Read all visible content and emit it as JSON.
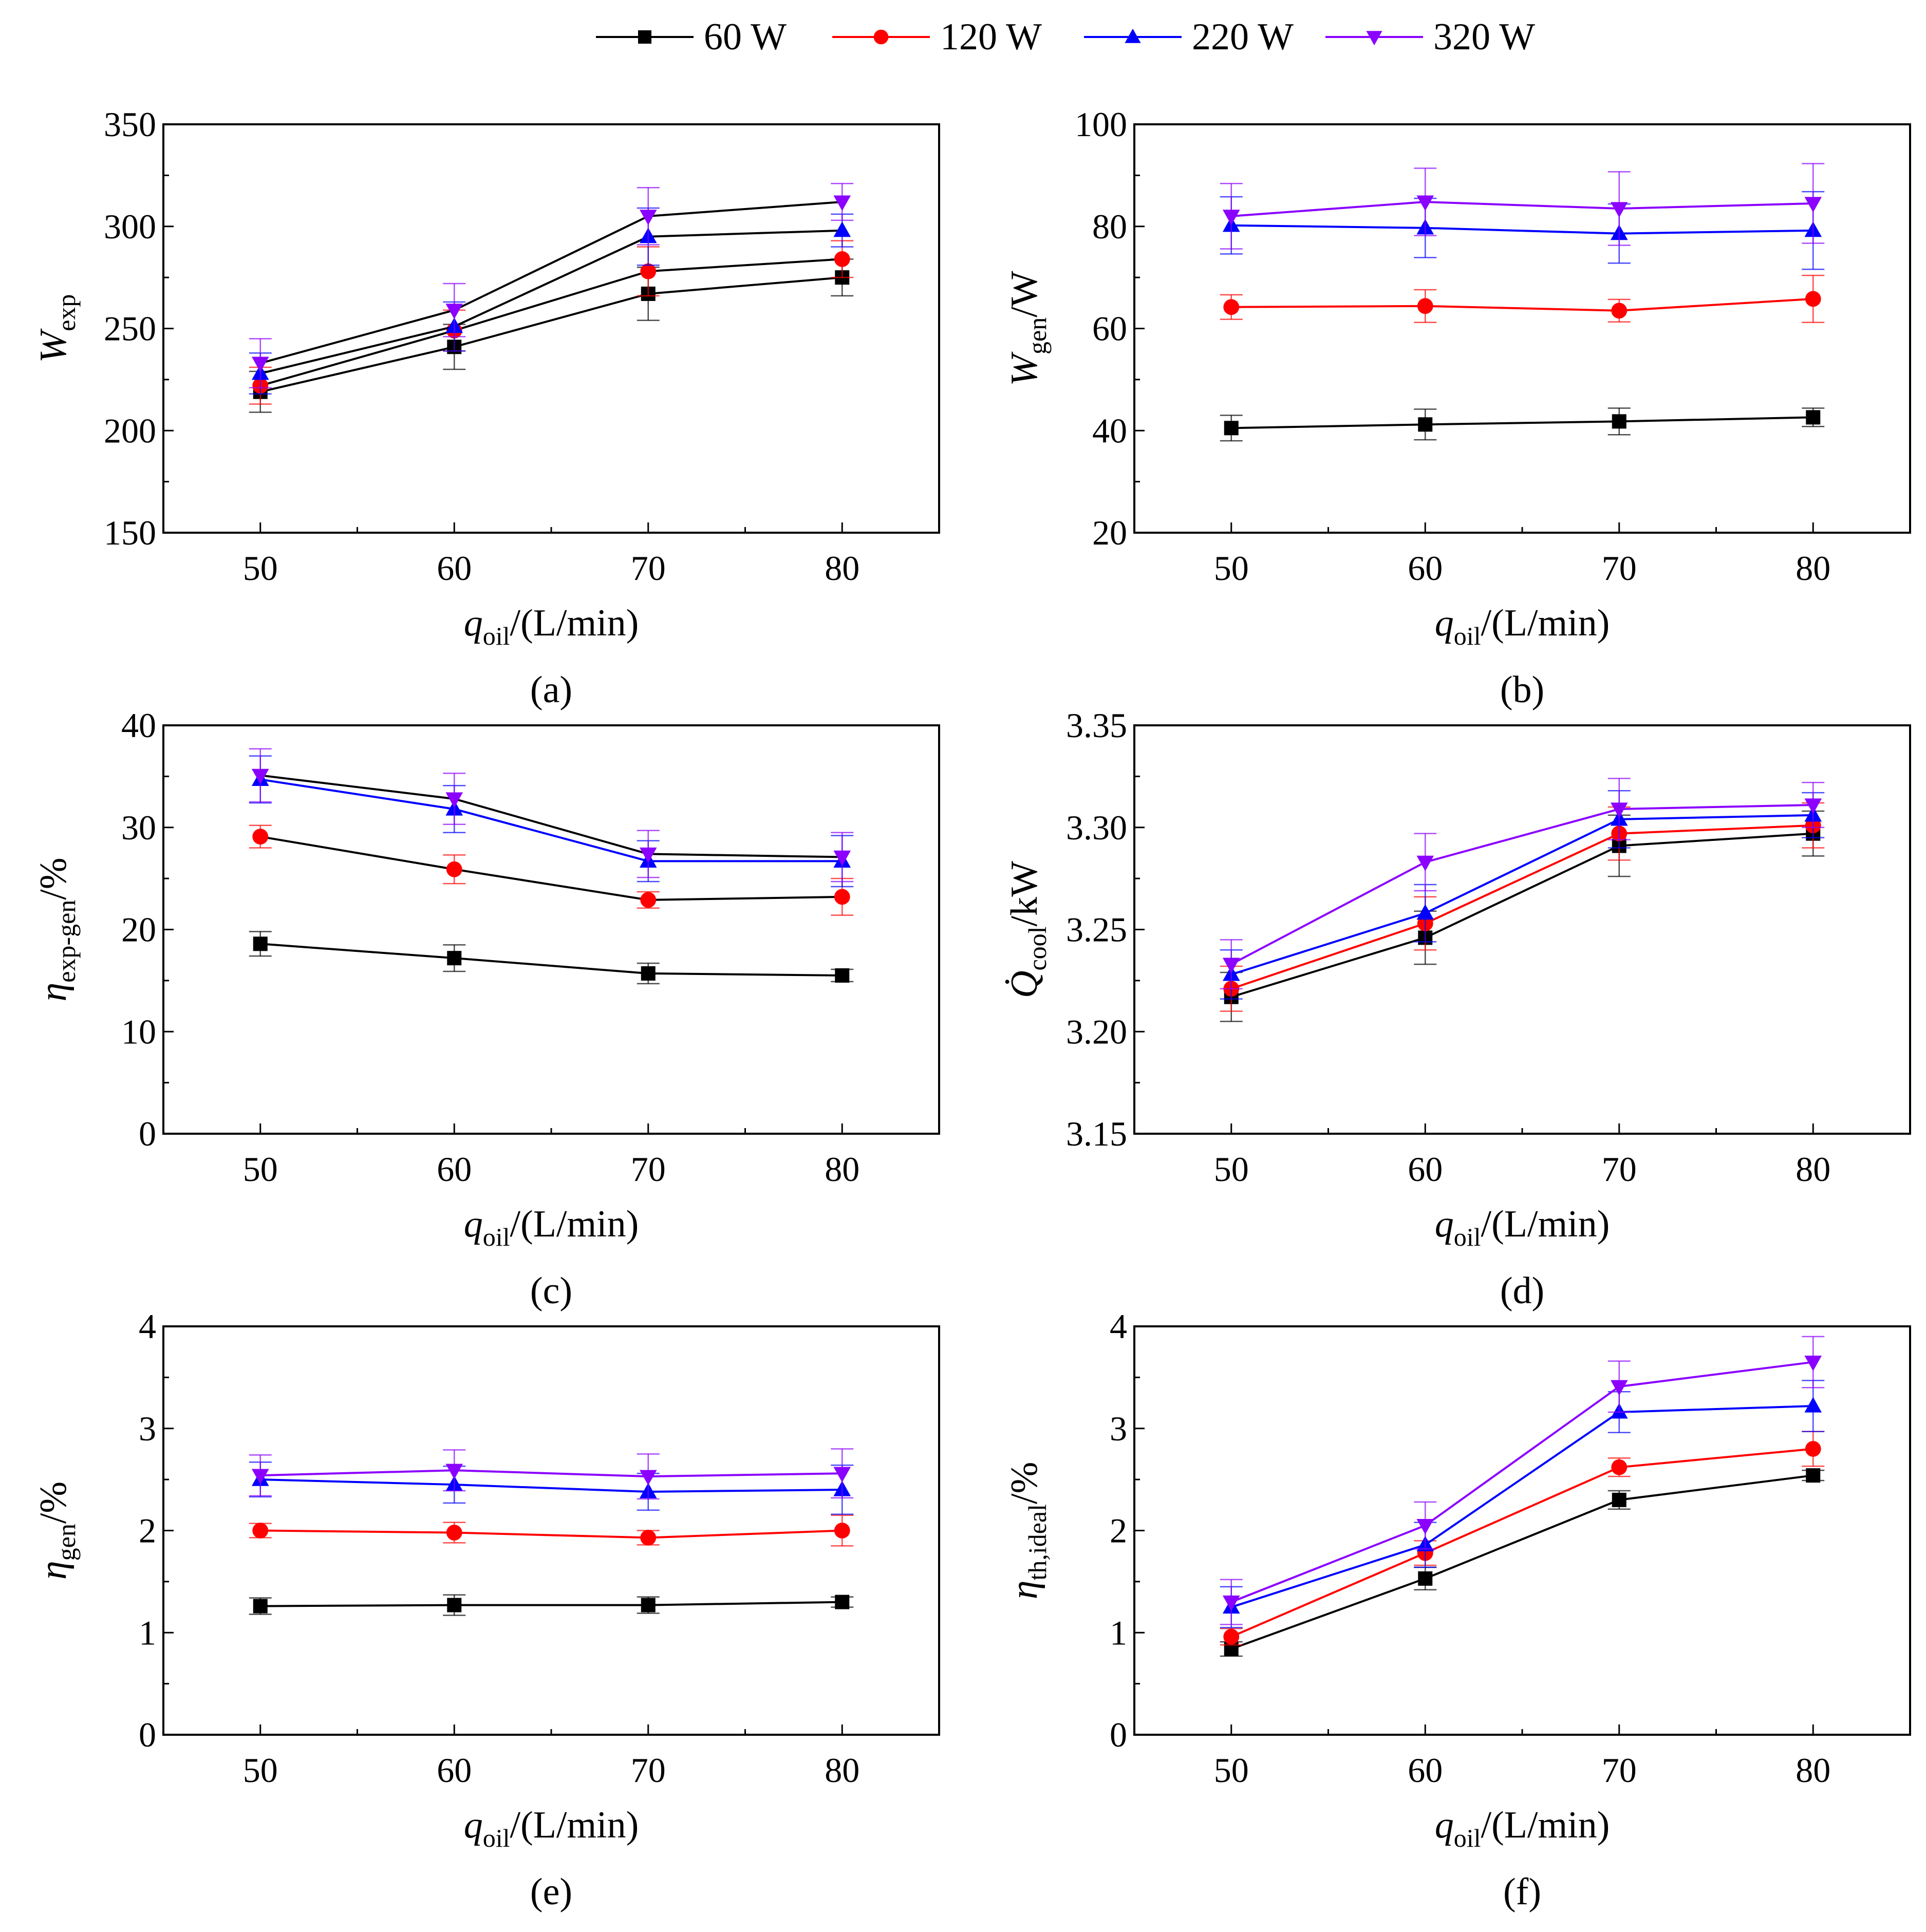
{
  "legend": [
    {
      "name": "60 W",
      "color": "#000000",
      "marker": "square"
    },
    {
      "name": "120 W",
      "color": "#ff0000",
      "marker": "circle"
    },
    {
      "name": "220 W",
      "color": "#0000ff",
      "marker": "triangle-up"
    },
    {
      "name": "320 W",
      "color": "#8b00ff",
      "marker": "triangle-down"
    }
  ],
  "chart_data": [
    {
      "id": "a",
      "panel_label": "(a)",
      "type": "line",
      "title": "",
      "xlabel": {
        "main": "q",
        "sub": "oil",
        "tail": "/(L/min)"
      },
      "ylabel": {
        "main": "W",
        "sub": "exp",
        "tail": ""
      },
      "x": [
        50,
        60,
        70,
        80
      ],
      "xlim": [
        45,
        85
      ],
      "ylim": [
        150,
        350
      ],
      "xticks": [
        50,
        60,
        70,
        80
      ],
      "yticks": [
        150,
        200,
        250,
        300,
        350
      ],
      "ytick_labels": [
        "150",
        "200",
        "250",
        "300",
        "350"
      ],
      "series": [
        {
          "name": "60 W",
          "values": [
            219,
            241,
            267,
            275
          ],
          "errors": [
            10,
            11,
            13,
            9
          ]
        },
        {
          "name": "120 W",
          "values": [
            222,
            249,
            278,
            284
          ],
          "errors": [
            9,
            10,
            12,
            9
          ]
        },
        {
          "name": "220 W",
          "values": [
            228,
            251,
            295,
            298
          ],
          "errors": [
            10,
            12,
            14,
            8
          ]
        },
        {
          "name": "320 W",
          "values": [
            233,
            259,
            305,
            312
          ],
          "errors": [
            12,
            13,
            14,
            9
          ]
        }
      ],
      "line_colors": [
        "#000000",
        "#000000",
        "#000000",
        "#000000"
      ]
    },
    {
      "id": "b",
      "panel_label": "(b)",
      "type": "line",
      "title": "",
      "xlabel": {
        "main": "q",
        "sub": "oil",
        "tail": "/(L/min)"
      },
      "ylabel": {
        "main": "W",
        "sub": "gen",
        "tail": "/W"
      },
      "x": [
        50,
        60,
        70,
        80
      ],
      "xlim": [
        45,
        85
      ],
      "ylim": [
        20,
        100
      ],
      "xticks": [
        50,
        60,
        70,
        80
      ],
      "yticks": [
        20,
        40,
        60,
        80,
        100
      ],
      "ytick_labels": [
        "20",
        "40",
        "60",
        "80",
        "100"
      ],
      "series": [
        {
          "name": "60 W",
          "values": [
            40.5,
            41.2,
            41.8,
            42.6
          ],
          "errors": [
            2.5,
            3,
            2.6,
            1.8
          ]
        },
        {
          "name": "120 W",
          "values": [
            64.2,
            64.4,
            63.5,
            65.8
          ],
          "errors": [
            2.4,
            3.2,
            2.2,
            4.6
          ]
        },
        {
          "name": "220 W",
          "values": [
            80.2,
            79.7,
            78.6,
            79.2
          ],
          "errors": [
            5.6,
            5.8,
            5.8,
            7.6
          ]
        },
        {
          "name": "320 W",
          "values": [
            82,
            84.8,
            83.5,
            84.5
          ],
          "errors": [
            6.4,
            6.6,
            7.2,
            7.8
          ]
        }
      ],
      "line_colors": [
        "#000000",
        "#ff0000",
        "#0000ff",
        "#8b00ff"
      ]
    },
    {
      "id": "c",
      "panel_label": "(c)",
      "type": "line",
      "title": "",
      "xlabel": {
        "main": "q",
        "sub": "oil",
        "tail": "/(L/min)"
      },
      "ylabel": {
        "main": "η",
        "sub": "exp-gen",
        "tail": "/%"
      },
      "x": [
        50,
        60,
        70,
        80
      ],
      "xlim": [
        45,
        85
      ],
      "ylim": [
        0,
        40
      ],
      "xticks": [
        50,
        60,
        70,
        80
      ],
      "yticks": [
        0,
        10,
        20,
        30,
        40
      ],
      "ytick_labels": [
        "0",
        "10",
        "20",
        "30",
        "40"
      ],
      "series": [
        {
          "name": "60 W",
          "values": [
            18.6,
            17.2,
            15.7,
            15.5
          ],
          "errors": [
            1.2,
            1.3,
            1,
            0.6
          ]
        },
        {
          "name": "120 W",
          "values": [
            29.1,
            25.9,
            22.9,
            23.2
          ],
          "errors": [
            1.1,
            1.4,
            0.8,
            1.8
          ]
        },
        {
          "name": "220 W",
          "values": [
            34.7,
            31.8,
            26.7,
            26.7
          ],
          "errors": [
            2.3,
            2.3,
            2,
            2.5
          ]
        },
        {
          "name": "320 W",
          "values": [
            35.1,
            32.8,
            27.4,
            27.1
          ],
          "errors": [
            2.6,
            2.5,
            2.3,
            2.4
          ]
        }
      ],
      "line_colors": [
        "#000000",
        "#000000",
        "#0000ff",
        "#000000"
      ]
    },
    {
      "id": "d",
      "panel_label": "(d)",
      "type": "line",
      "title": "",
      "xlabel": {
        "main": "q",
        "sub": "oil",
        "tail": "/(L/min)"
      },
      "ylabel": {
        "main": "Q̇",
        "sub": "cool",
        "tail": "/kW"
      },
      "x": [
        50,
        60,
        70,
        80
      ],
      "xlim": [
        45,
        85
      ],
      "ylim": [
        3.15,
        3.35
      ],
      "xticks": [
        50,
        60,
        70,
        80
      ],
      "yticks": [
        3.15,
        3.2,
        3.25,
        3.3,
        3.35
      ],
      "ytick_labels": [
        "3.15",
        "3.20",
        "3.25",
        "3.30",
        "3.35"
      ],
      "series": [
        {
          "name": "60 W",
          "values": [
            3.217,
            3.246,
            3.291,
            3.297
          ],
          "errors": [
            0.012,
            0.013,
            0.015,
            0.011
          ]
        },
        {
          "name": "120 W",
          "values": [
            3.221,
            3.253,
            3.297,
            3.301
          ],
          "errors": [
            0.011,
            0.013,
            0.013,
            0.011
          ]
        },
        {
          "name": "220 W",
          "values": [
            3.228,
            3.258,
            3.304,
            3.306
          ],
          "errors": [
            0.012,
            0.014,
            0.014,
            0.011
          ]
        },
        {
          "name": "320 W",
          "values": [
            3.233,
            3.283,
            3.309,
            3.311
          ],
          "errors": [
            0.012,
            0.014,
            0.015,
            0.011
          ]
        }
      ],
      "line_colors": [
        "#000000",
        "#ff0000",
        "#0000ff",
        "#8b00ff"
      ]
    },
    {
      "id": "e",
      "panel_label": "(e)",
      "type": "line",
      "title": "",
      "xlabel": {
        "main": "q",
        "sub": "oil",
        "tail": "/(L/min)"
      },
      "ylabel": {
        "main": "η",
        "sub": "gen",
        "tail": "/%"
      },
      "x": [
        50,
        60,
        70,
        80
      ],
      "xlim": [
        45,
        85
      ],
      "ylim": [
        0,
        4
      ],
      "xticks": [
        50,
        60,
        70,
        80
      ],
      "yticks": [
        0,
        1,
        2,
        3,
        4
      ],
      "ytick_labels": [
        "0",
        "1",
        "2",
        "3",
        "4"
      ],
      "series": [
        {
          "name": "60 W",
          "values": [
            1.26,
            1.27,
            1.27,
            1.3
          ],
          "errors": [
            0.08,
            0.1,
            0.08,
            0.05
          ]
        },
        {
          "name": "120 W",
          "values": [
            2.0,
            1.98,
            1.93,
            2.0
          ],
          "errors": [
            0.07,
            0.1,
            0.07,
            0.15
          ]
        },
        {
          "name": "220 W",
          "values": [
            2.5,
            2.45,
            2.38,
            2.4
          ],
          "errors": [
            0.17,
            0.18,
            0.18,
            0.24
          ]
        },
        {
          "name": "320 W",
          "values": [
            2.54,
            2.59,
            2.53,
            2.56
          ],
          "errors": [
            0.2,
            0.2,
            0.22,
            0.24
          ]
        }
      ],
      "line_colors": [
        "#000000",
        "#ff0000",
        "#0000ff",
        "#8b00ff"
      ]
    },
    {
      "id": "f",
      "panel_label": "(f)",
      "type": "line",
      "title": "",
      "xlabel": {
        "main": "q",
        "sub": "oil",
        "tail": "/(L/min)"
      },
      "ylabel": {
        "main": "η",
        "sub": "th,ideal",
        "tail": "/%"
      },
      "x": [
        50,
        60,
        70,
        80
      ],
      "xlim": [
        45,
        85
      ],
      "ylim": [
        0,
        4
      ],
      "xticks": [
        50,
        60,
        70,
        80
      ],
      "yticks": [
        0,
        1,
        2,
        3,
        4
      ],
      "ytick_labels": [
        "0",
        "1",
        "2",
        "3",
        "4"
      ],
      "series": [
        {
          "name": "60 W",
          "values": [
            0.84,
            1.53,
            2.3,
            2.54
          ],
          "errors": [
            0.07,
            0.11,
            0.09,
            0.05
          ]
        },
        {
          "name": "120 W",
          "values": [
            0.96,
            1.78,
            2.62,
            2.8
          ],
          "errors": [
            0.08,
            0.12,
            0.09,
            0.17
          ]
        },
        {
          "name": "220 W",
          "values": [
            1.25,
            1.86,
            3.16,
            3.22
          ],
          "errors": [
            0.2,
            0.22,
            0.2,
            0.25
          ]
        },
        {
          "name": "320 W",
          "values": [
            1.3,
            2.05,
            3.41,
            3.65
          ],
          "errors": [
            0.22,
            0.23,
            0.25,
            0.25
          ]
        }
      ],
      "line_colors": [
        "#000000",
        "#ff0000",
        "#0000ff",
        "#8b00ff"
      ]
    }
  ]
}
